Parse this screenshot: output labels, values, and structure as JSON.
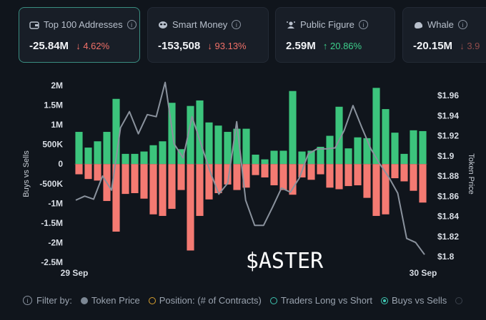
{
  "cards": [
    {
      "title": "Top 100 Addresses",
      "value": "-25.84M",
      "change": "4.62%",
      "direction": "down",
      "icon": "wallet-icon"
    },
    {
      "title": "Smart Money",
      "value": "-153,508",
      "change": "93.13%",
      "direction": "down",
      "icon": "smart-money-icon"
    },
    {
      "title": "Public Figure",
      "value": "2.59M",
      "change": "20.86%",
      "direction": "up",
      "icon": "public-figure-icon"
    },
    {
      "title": "Whale",
      "value": "-20.15M",
      "change": "3.9",
      "direction": "down",
      "icon": "whale-icon"
    }
  ],
  "arrows": {
    "down": "↓",
    "up": "↑"
  },
  "info_glyph": "i",
  "chart_data": {
    "type": "bar",
    "ylabel": "Buys vs Sells",
    "y2label": "Token Price",
    "left_ticks": [
      "2M",
      "1.5M",
      "1M",
      "500K",
      "0",
      "-500K",
      "-1M",
      "-1.5M",
      "-2M",
      "-2.5M"
    ],
    "right_ticks": [
      "$1.96",
      "$1.94",
      "$1.92",
      "$1.9",
      "$1.88",
      "$1.86",
      "$1.84",
      "$1.82",
      "$1.8"
    ],
    "x_start_label": "29 Sep",
    "x_end_label": "30 Sep",
    "ylim": [
      -2.5,
      2
    ],
    "y2lim": [
      1.8,
      1.96
    ],
    "watermark": "$ASTER",
    "colors": {
      "buys": "#3cc47c",
      "sells": "#f47a72",
      "price": "#8a929d"
    },
    "series": [
      {
        "name": "Buys",
        "values": [
          0.82,
          0.42,
          0.58,
          0.82,
          1.66,
          0.26,
          0.26,
          0.32,
          0.48,
          0.58,
          1.56,
          0.38,
          1.48,
          1.62,
          1.06,
          0.98,
          0.82,
          0.9,
          0.9,
          0.24,
          0.12,
          0.34,
          0.34,
          1.86,
          0.32,
          0.34,
          0.44,
          0.72,
          1.46,
          0.4,
          0.68,
          0.66,
          1.94,
          1.4,
          0.8,
          0.26,
          0.86,
          0.84
        ]
      },
      {
        "name": "Sells",
        "values": [
          -0.26,
          -0.38,
          -0.42,
          -0.94,
          -1.72,
          -0.76,
          -0.74,
          -0.88,
          -1.28,
          -1.32,
          -1.14,
          -0.66,
          -2.2,
          -1.32,
          -0.9,
          -0.74,
          -0.52,
          -0.66,
          -0.6,
          -0.28,
          -0.34,
          -0.54,
          -0.66,
          -0.78,
          -0.34,
          -0.4,
          -0.26,
          -0.6,
          -0.64,
          -0.56,
          -0.54,
          -0.86,
          -1.32,
          -1.28,
          -0.36,
          -0.44,
          -0.68,
          -0.98
        ]
      }
    ],
    "price": [
      1.856,
      1.86,
      1.857,
      1.88,
      1.866,
      1.928,
      1.944,
      1.922,
      1.941,
      1.939,
      1.973,
      1.912,
      1.898,
      1.939,
      1.912,
      1.885,
      1.862,
      1.873,
      1.934,
      1.856,
      1.831,
      1.831,
      1.849,
      1.868,
      1.864,
      1.878,
      1.902,
      1.907,
      1.907,
      1.908,
      1.925,
      1.95,
      1.928,
      1.907,
      1.892,
      1.879,
      1.863,
      1.818,
      1.814,
      1.802
    ]
  },
  "filter": {
    "label": "Filter by:",
    "items": [
      {
        "label": "Token Price",
        "color": "#7c8794",
        "style": "filled"
      },
      {
        "label": "Position: (# of Contracts)",
        "color": "#d9a02e",
        "style": "ring"
      },
      {
        "label": "Traders Long vs Short",
        "color": "#3ec4b0",
        "style": "ring"
      },
      {
        "label": "Buys vs Sells",
        "color": "#3ec4b0",
        "style": "selected"
      }
    ]
  }
}
